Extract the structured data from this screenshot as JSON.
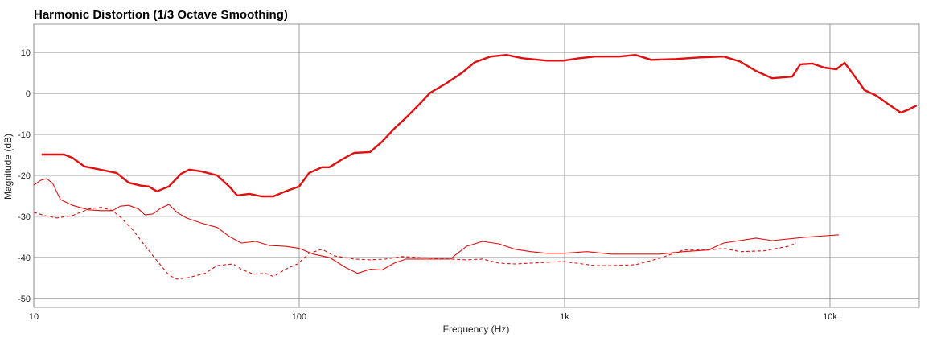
{
  "chart_data": {
    "type": "line",
    "title": "Harmonic Distortion (1/3 Octave Smoothing)",
    "x_label": "Frequency (Hz)",
    "y_label": "Magnitude (dB)",
    "x_log": true,
    "grid": true,
    "xlim": [
      10,
      21700
    ],
    "ylim": [
      -52.2,
      16.9
    ],
    "xticks": [
      10,
      100,
      {
        "value": 1000,
        "label": "1k"
      },
      {
        "value": 10000,
        "label": "10k"
      }
    ],
    "yticks": [
      10,
      0,
      -10,
      -20,
      -30,
      -40,
      -50
    ],
    "series": [
      {
        "color": "#e01010",
        "width": 2.4,
        "dashed": false,
        "x": [
          10.7,
          13.0,
          14.0,
          15.5,
          18.5,
          20.5,
          22.8,
          25.3,
          27.1,
          29.1,
          32.3,
          35.9,
          38.5,
          42.7,
          49.1,
          54.5,
          58.4,
          64.9,
          72.1,
          80.0,
          88.8,
          100,
          109,
          122,
          130,
          145,
          161,
          185,
          205,
          228,
          253,
          281,
          312,
          359,
          412,
          458,
          526,
          605,
          695,
          857,
          986,
          1135,
          1303,
          1607,
          1849,
          2123,
          2618,
          3228,
          3981,
          4581,
          5260,
          6053,
          7211,
          7727,
          8570,
          9527,
          10570,
          11350,
          12160,
          13490,
          14990,
          16630,
          18480,
          19820,
          21230
        ],
        "values": [
          -14.9,
          -14.9,
          -15.7,
          -17.8,
          -18.8,
          -19.4,
          -21.8,
          -22.5,
          -22.7,
          -23.9,
          -22.7,
          -19.6,
          -18.6,
          -19.0,
          -20.0,
          -22.7,
          -24.9,
          -24.5,
          -25.1,
          -25.1,
          -23.9,
          -22.7,
          -19.4,
          -18.0,
          -18.0,
          -16.1,
          -14.5,
          -14.3,
          -11.8,
          -8.6,
          -5.9,
          -2.9,
          0.2,
          2.5,
          5.1,
          7.6,
          9.0,
          9.4,
          8.6,
          8.0,
          8.0,
          8.6,
          9.0,
          9.0,
          9.4,
          8.2,
          8.4,
          8.8,
          9.0,
          7.8,
          5.5,
          3.7,
          4.1,
          7.1,
          7.3,
          6.3,
          5.9,
          7.5,
          4.9,
          0.8,
          -0.6,
          -2.7,
          -4.7,
          -3.9,
          -2.9
        ]
      },
      {
        "color": "#e01010",
        "width": 1.1,
        "dashed": false,
        "x": [
          10,
          10.6,
          11.2,
          11.8,
          12.6,
          14.0,
          16.1,
          17.9,
          19.8,
          21.2,
          22.8,
          24.8,
          26.2,
          28.1,
          30.1,
          32.3,
          34.6,
          37.6,
          42.7,
          49.1,
          54.5,
          60.5,
          68.6,
          77.3,
          88.8,
          100,
          113,
          130,
          150,
          166,
          185,
          205,
          228,
          253,
          281,
          323,
          371,
          427,
          491,
          565,
          649,
          746,
          857,
          986,
          1216,
          1499,
          1849,
          2279,
          2809,
          3463,
          3981,
          5260,
          6053,
          7998,
          10790
        ],
        "values": [
          -22.4,
          -21.2,
          -20.8,
          -22.0,
          -25.9,
          -27.3,
          -28.4,
          -28.6,
          -28.6,
          -27.5,
          -27.3,
          -28.2,
          -29.6,
          -29.4,
          -28.0,
          -27.1,
          -29.0,
          -30.4,
          -31.6,
          -32.7,
          -34.9,
          -36.5,
          -36.1,
          -37.1,
          -37.3,
          -37.8,
          -39.2,
          -40.0,
          -42.5,
          -43.9,
          -42.9,
          -43.1,
          -41.4,
          -40.4,
          -40.4,
          -40.4,
          -40.4,
          -37.3,
          -36.1,
          -36.7,
          -38.0,
          -38.6,
          -39.0,
          -39.0,
          -38.6,
          -39.2,
          -39.2,
          -39.2,
          -38.6,
          -38.2,
          -36.5,
          -35.3,
          -35.9,
          -35.1,
          -34.5
        ]
      },
      {
        "color": "#e01010",
        "width": 1.1,
        "dashed": true,
        "x": [
          10,
          11.0,
          12.2,
          14.0,
          16.1,
          17.9,
          19.8,
          21.2,
          23.6,
          26.2,
          29.1,
          32.3,
          34.6,
          38.5,
          44.2,
          49.1,
          56.4,
          60.5,
          67.2,
          74.6,
          80.0,
          88.8,
          98.6,
          109,
          122,
          135,
          161,
          185,
          212,
          244,
          281,
          323,
          371,
          427,
          491,
          565,
          649,
          857,
          986,
          1303,
          1499,
          1849,
          2279,
          2809,
          3463,
          3981,
          4581,
          5645,
          6955,
          7460
        ],
        "values": [
          -29.0,
          -29.8,
          -30.4,
          -29.8,
          -28.2,
          -27.8,
          -28.6,
          -30.2,
          -33.3,
          -37.1,
          -40.8,
          -44.3,
          -45.3,
          -44.9,
          -43.9,
          -42.0,
          -41.6,
          -42.9,
          -44.1,
          -43.9,
          -44.7,
          -42.9,
          -41.6,
          -39.0,
          -38.0,
          -39.6,
          -40.4,
          -40.6,
          -40.4,
          -39.8,
          -40.0,
          -40.2,
          -40.4,
          -40.6,
          -40.4,
          -41.4,
          -41.6,
          -41.2,
          -41.0,
          -42.0,
          -42.0,
          -41.8,
          -40.2,
          -38.2,
          -38.2,
          -37.8,
          -38.6,
          -38.4,
          -37.3,
          -36.5
        ]
      }
    ]
  }
}
